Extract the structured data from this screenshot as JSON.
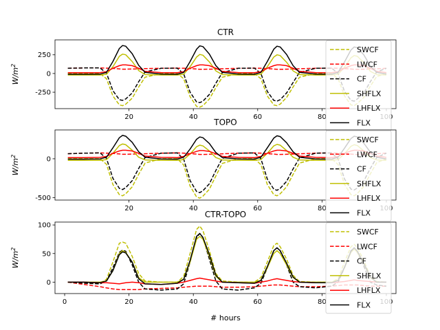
{
  "figure": {
    "background": "#ffffff",
    "series_styles": [
      {
        "name": "SWCF",
        "color": "#bfbf00",
        "dashed": true
      },
      {
        "name": "LWCF",
        "color": "#ff0000",
        "dashed": true
      },
      {
        "name": "CF",
        "color": "#000000",
        "dashed": true
      },
      {
        "name": "SHFLX",
        "color": "#bfbf00",
        "dashed": false
      },
      {
        "name": "LHFLX",
        "color": "#ff0000",
        "dashed": false
      },
      {
        "name": "FLX",
        "color": "#000000",
        "dashed": false
      }
    ]
  },
  "chart_data": [
    {
      "type": "line",
      "title": "CTR",
      "xlabel": "",
      "ylabel": "W/m",
      "ylabel_sup": "2",
      "xlim": [
        -3,
        103
      ],
      "ylim": [
        -470,
        450
      ],
      "xticks": [
        20,
        40,
        60,
        80,
        100
      ],
      "yticks": [
        -250,
        0,
        250
      ],
      "legend": "right",
      "x": [
        1,
        6,
        11,
        13,
        15,
        17,
        18,
        19,
        21,
        23,
        25,
        30,
        35,
        37,
        39,
        41,
        42,
        43,
        45,
        47,
        49,
        54,
        59,
        61,
        63,
        65,
        66,
        67,
        69,
        71,
        73,
        78,
        83,
        85,
        87,
        89,
        90,
        91,
        93,
        95,
        97,
        100
      ],
      "series": [
        {
          "name": "SWCF",
          "values": [
            0,
            0,
            0,
            -70,
            -300,
            -420,
            -430,
            -410,
            -330,
            -180,
            -50,
            0,
            0,
            -70,
            -310,
            -440,
            -450,
            -430,
            -340,
            -190,
            -50,
            0,
            0,
            -70,
            -300,
            -420,
            -430,
            -410,
            -320,
            -180,
            -50,
            0,
            0,
            -70,
            -300,
            -420,
            -430,
            -400,
            -320,
            -170,
            -40,
            0
          ]
        },
        {
          "name": "LWCF",
          "values": [
            70,
            75,
            75,
            72,
            68,
            62,
            58,
            58,
            60,
            62,
            65,
            70,
            72,
            70,
            66,
            60,
            56,
            56,
            58,
            60,
            64,
            70,
            72,
            70,
            66,
            60,
            56,
            56,
            58,
            60,
            64,
            70,
            72,
            70,
            66,
            60,
            56,
            56,
            58,
            60,
            64,
            70
          ]
        },
        {
          "name": "CF",
          "values": [
            70,
            75,
            75,
            5,
            -230,
            -350,
            -360,
            -340,
            -260,
            -110,
            20,
            70,
            72,
            -5,
            -250,
            -380,
            -390,
            -370,
            -280,
            -130,
            10,
            70,
            72,
            0,
            -240,
            -360,
            -370,
            -350,
            -260,
            -120,
            15,
            70,
            72,
            0,
            -240,
            -360,
            -370,
            -340,
            -260,
            -110,
            20,
            70
          ]
        },
        {
          "name": "SHFLX",
          "values": [
            -20,
            -20,
            -20,
            -10,
            90,
            230,
            260,
            250,
            160,
            40,
            -15,
            -20,
            -20,
            -10,
            90,
            220,
            255,
            245,
            155,
            35,
            -15,
            -20,
            -20,
            -10,
            90,
            220,
            250,
            240,
            150,
            35,
            -15,
            -20,
            -20,
            -10,
            85,
            210,
            240,
            230,
            145,
            30,
            -15,
            -20
          ]
        },
        {
          "name": "LHFLX",
          "values": [
            10,
            10,
            12,
            25,
            70,
            105,
            115,
            115,
            105,
            70,
            30,
            12,
            10,
            25,
            70,
            105,
            115,
            115,
            105,
            70,
            30,
            12,
            10,
            25,
            70,
            105,
            115,
            115,
            105,
            70,
            30,
            12,
            10,
            25,
            70,
            105,
            115,
            115,
            105,
            70,
            30,
            12
          ]
        },
        {
          "name": "FLX",
          "values": [
            -10,
            -10,
            -8,
            15,
            160,
            335,
            375,
            365,
            265,
            110,
            15,
            -8,
            -10,
            15,
            160,
            325,
            370,
            360,
            260,
            105,
            15,
            -8,
            -10,
            15,
            160,
            325,
            365,
            355,
            255,
            105,
            15,
            -8,
            -10,
            15,
            155,
            315,
            355,
            345,
            250,
            100,
            15,
            -8
          ]
        }
      ]
    },
    {
      "type": "line",
      "title": "TOPO",
      "xlabel": "",
      "ylabel": "W/m",
      "ylabel_sup": "2",
      "xlim": [
        -3,
        103
      ],
      "ylim": [
        -530,
        370
      ],
      "xticks": [
        20,
        40,
        60,
        80,
        100
      ],
      "yticks": [
        -500,
        0
      ],
      "legend": "right",
      "x": [
        1,
        6,
        11,
        13,
        15,
        17,
        18,
        19,
        21,
        23,
        25,
        30,
        35,
        37,
        39,
        41,
        42,
        43,
        45,
        47,
        49,
        54,
        59,
        61,
        63,
        65,
        66,
        67,
        69,
        71,
        73,
        78,
        83,
        85,
        87,
        89,
        90,
        91,
        93,
        95,
        97,
        100
      ],
      "series": [
        {
          "name": "SWCF",
          "values": [
            0,
            0,
            0,
            -70,
            -330,
            -460,
            -475,
            -450,
            -360,
            -200,
            -55,
            0,
            0,
            -80,
            -350,
            -490,
            -505,
            -480,
            -390,
            -220,
            -60,
            0,
            0,
            -75,
            -330,
            -460,
            -475,
            -450,
            -360,
            -200,
            -55,
            0,
            0,
            -75,
            -330,
            -460,
            -475,
            -445,
            -355,
            -195,
            -50,
            0
          ]
        },
        {
          "name": "LWCF",
          "values": [
            65,
            72,
            75,
            72,
            68,
            62,
            58,
            58,
            60,
            62,
            65,
            72,
            75,
            72,
            66,
            60,
            56,
            56,
            58,
            60,
            64,
            72,
            75,
            72,
            66,
            60,
            56,
            56,
            58,
            60,
            64,
            72,
            75,
            72,
            66,
            60,
            56,
            56,
            58,
            60,
            64,
            72
          ]
        },
        {
          "name": "CF",
          "values": [
            65,
            72,
            75,
            5,
            -250,
            -380,
            -395,
            -370,
            -280,
            -125,
            15,
            72,
            75,
            -5,
            -280,
            -420,
            -435,
            -410,
            -320,
            -150,
            5,
            72,
            75,
            0,
            -260,
            -390,
            -405,
            -380,
            -290,
            -130,
            10,
            72,
            75,
            0,
            -260,
            -390,
            -400,
            -375,
            -285,
            -125,
            15,
            72
          ]
        },
        {
          "name": "SHFLX",
          "values": [
            -20,
            -20,
            -20,
            -10,
            70,
            170,
            190,
            180,
            110,
            20,
            -15,
            -20,
            -20,
            -10,
            60,
            155,
            175,
            165,
            100,
            15,
            -15,
            -20,
            -20,
            -10,
            70,
            165,
            185,
            175,
            105,
            20,
            -15,
            -20,
            -20,
            -10,
            65,
            160,
            180,
            170,
            100,
            15,
            -15,
            -20
          ]
        },
        {
          "name": "LHFLX",
          "values": [
            15,
            15,
            18,
            30,
            70,
            100,
            110,
            110,
            100,
            70,
            35,
            18,
            15,
            30,
            65,
            95,
            105,
            105,
            95,
            65,
            30,
            18,
            15,
            30,
            70,
            100,
            110,
            110,
            100,
            70,
            35,
            18,
            15,
            30,
            70,
            100,
            110,
            110,
            100,
            70,
            35,
            18
          ]
        },
        {
          "name": "FLX",
          "values": [
            -5,
            -5,
            -2,
            20,
            140,
            270,
            300,
            290,
            210,
            90,
            20,
            -2,
            -5,
            20,
            125,
            250,
            280,
            270,
            195,
            80,
            15,
            -2,
            -5,
            20,
            140,
            265,
            295,
            285,
            205,
            90,
            20,
            -2,
            -5,
            20,
            135,
            260,
            290,
            280,
            200,
            85,
            20,
            -2
          ]
        }
      ]
    },
    {
      "type": "line",
      "title": "CTR-TOPO",
      "xlabel": "# hours",
      "ylabel": "W/m",
      "ylabel_sup": "2",
      "xlim": [
        -3,
        103
      ],
      "ylim": [
        -20,
        105
      ],
      "xticks": [
        0,
        20,
        40,
        60,
        80,
        100
      ],
      "yticks": [
        0,
        50,
        100
      ],
      "legend": "right",
      "x": [
        1,
        6,
        11,
        13,
        15,
        17,
        18,
        19,
        21,
        23,
        25,
        30,
        35,
        37,
        39,
        41,
        42,
        43,
        45,
        47,
        49,
        54,
        59,
        61,
        63,
        65,
        66,
        67,
        69,
        71,
        73,
        78,
        83,
        85,
        87,
        89,
        90,
        91,
        93,
        95,
        97,
        100
      ],
      "series": [
        {
          "name": "SWCF",
          "values": [
            0,
            -1,
            -2,
            5,
            35,
            68,
            70,
            68,
            45,
            15,
            2,
            0,
            0,
            10,
            50,
            92,
            98,
            90,
            55,
            15,
            2,
            0,
            0,
            8,
            35,
            64,
            68,
            62,
            40,
            12,
            1,
            0,
            0,
            6,
            35,
            62,
            66,
            60,
            38,
            10,
            1,
            0
          ]
        },
        {
          "name": "LWCF",
          "values": [
            0,
            -4,
            -8,
            -10,
            -12,
            -13,
            -13,
            -13,
            -13,
            -13,
            -12,
            -11,
            -10,
            -9,
            -8,
            -7,
            -7,
            -7,
            -7,
            -8,
            -9,
            -9,
            -8,
            -7,
            -6,
            -5,
            -5,
            -5,
            -6,
            -7,
            -8,
            -8,
            -7,
            -6,
            -5,
            -5,
            -5,
            -5,
            -6,
            -7,
            -7,
            -7
          ]
        },
        {
          "name": "CF",
          "values": [
            0,
            -2,
            -3,
            2,
            25,
            52,
            56,
            54,
            30,
            0,
            -12,
            -14,
            -12,
            -3,
            35,
            78,
            85,
            78,
            40,
            2,
            -12,
            -14,
            -10,
            -2,
            25,
            55,
            60,
            55,
            30,
            0,
            -8,
            -10,
            -7,
            0,
            25,
            55,
            60,
            52,
            28,
            0,
            -5,
            -7
          ]
        },
        {
          "name": "SHFLX",
          "values": [
            0,
            0,
            0,
            2,
            20,
            50,
            55,
            52,
            35,
            8,
            0,
            0,
            0,
            5,
            35,
            75,
            80,
            75,
            45,
            10,
            0,
            0,
            0,
            3,
            25,
            50,
            55,
            50,
            30,
            8,
            0,
            0,
            0,
            3,
            25,
            52,
            58,
            52,
            32,
            8,
            0,
            0
          ]
        },
        {
          "name": "LHFLX",
          "values": [
            0,
            0,
            -1,
            -1,
            -2,
            -3,
            -2,
            -1,
            0,
            -1,
            -3,
            -4,
            -2,
            0,
            3,
            6,
            7,
            6,
            4,
            2,
            0,
            -1,
            -2,
            0,
            2,
            5,
            6,
            5,
            3,
            1,
            0,
            -1,
            -1,
            0,
            1,
            3,
            4,
            3,
            2,
            1,
            0,
            0
          ]
        },
        {
          "name": "FLX",
          "values": [
            0,
            0,
            -1,
            2,
            20,
            48,
            53,
            51,
            35,
            6,
            -3,
            -4,
            -2,
            5,
            38,
            80,
            85,
            78,
            48,
            12,
            0,
            -1,
            -2,
            3,
            27,
            55,
            60,
            55,
            33,
            9,
            0,
            -1,
            -1,
            3,
            26,
            54,
            60,
            54,
            33,
            9,
            0,
            0
          ]
        }
      ]
    }
  ]
}
